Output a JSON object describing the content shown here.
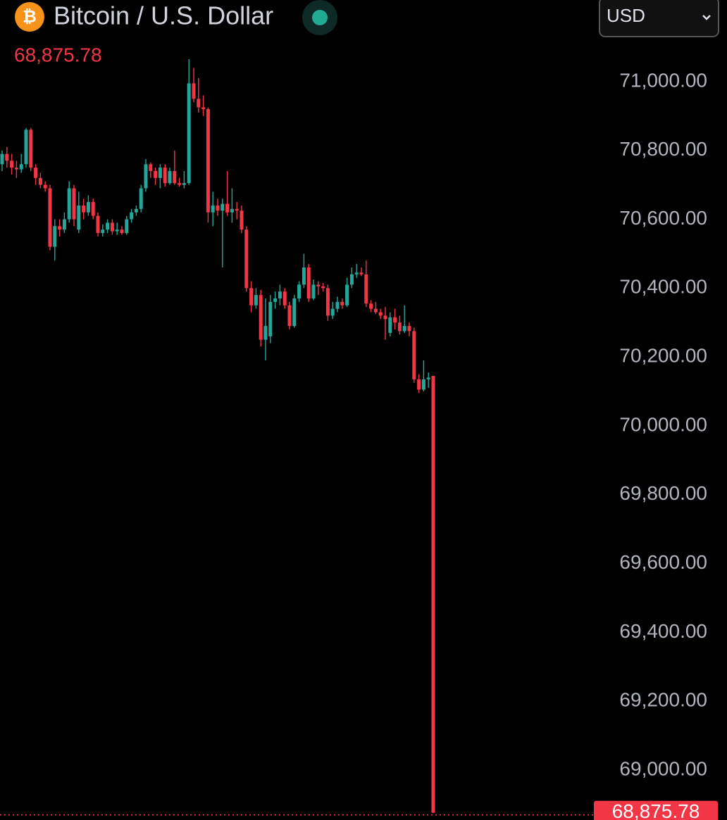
{
  "chart_data": {
    "type": "candlestick",
    "icon_symbol": "₿",
    "title": "Bitcoin / U.S. Dollar",
    "currency": "USD",
    "last_price": {
      "value": 68875.78,
      "label": "68,875.78"
    },
    "up_color": "#26a69a",
    "down_color": "#f23645",
    "ylim": [
      68865,
      71237
    ],
    "yticks": [
      {
        "value": 71000,
        "label": "71,000.00"
      },
      {
        "value": 70800,
        "label": "70,800.00"
      },
      {
        "value": 70600,
        "label": "70,600.00"
      },
      {
        "value": 70400,
        "label": "70,400.00"
      },
      {
        "value": 70200,
        "label": "70,200.00"
      },
      {
        "value": 70000,
        "label": "70,000.00"
      },
      {
        "value": 69800,
        "label": "69,800.00"
      },
      {
        "value": 69600,
        "label": "69,600.00"
      },
      {
        "value": 69400,
        "label": "69,400.00"
      },
      {
        "value": 69200,
        "label": "69,200.00"
      },
      {
        "value": 69000,
        "label": "69,000.00"
      }
    ],
    "open": [
      70760,
      70790,
      70770,
      70750,
      70745,
      70760,
      70860,
      70750,
      70720,
      70700,
      70690,
      70520,
      70580,
      70570,
      70600,
      70690,
      70570,
      70640,
      70620,
      70650,
      70610,
      70560,
      70570,
      70590,
      70565,
      70570,
      70560,
      70600,
      70620,
      70630,
      70690,
      70760,
      70740,
      70720,
      70750,
      70705,
      70740,
      70705,
      70700,
      70705,
      70995,
      70950,
      70925,
      70920,
      70620,
      70640,
      70625,
      70645,
      70620,
      70630,
      70625,
      70570,
      70400,
      70350,
      70380,
      70250,
      70260,
      70360,
      70370,
      70390,
      70350,
      70290,
      70370,
      70410,
      70460,
      70370,
      70410,
      70405,
      70400,
      70320,
      70340,
      70360,
      70350,
      70410,
      70440,
      70445,
      70440,
      70355,
      70340,
      70330,
      70320,
      70270,
      70315,
      70300,
      70275,
      70290,
      70275,
      70135,
      70105,
      70135,
      70145
    ],
    "high": [
      70800,
      70810,
      70790,
      70770,
      70790,
      70865,
      70865,
      70760,
      70735,
      70710,
      70700,
      70600,
      70600,
      70620,
      70710,
      70700,
      70680,
      70660,
      70670,
      70660,
      70620,
      70585,
      70600,
      70600,
      70590,
      70580,
      70610,
      70630,
      70640,
      70700,
      70775,
      70765,
      70750,
      70760,
      70760,
      70750,
      70800,
      70720,
      70740,
      71065,
      71040,
      71010,
      70960,
      70925,
      70680,
      70660,
      70660,
      70740,
      70690,
      70650,
      70640,
      70580,
      70420,
      70400,
      70395,
      70370,
      70380,
      70390,
      70410,
      70400,
      70360,
      70380,
      70420,
      70500,
      70470,
      70425,
      70420,
      70415,
      70410,
      70360,
      70375,
      70370,
      70430,
      70460,
      70470,
      70460,
      70480,
      70365,
      70360,
      70340,
      70345,
      70330,
      70340,
      70320,
      70350,
      70300,
      70285,
      70150,
      70190,
      70155,
      70145
    ],
    "low": [
      70740,
      70750,
      70730,
      70720,
      70735,
      70750,
      70740,
      70700,
      70690,
      70680,
      70510,
      70480,
      70550,
      70560,
      70590,
      70580,
      70560,
      70600,
      70610,
      70600,
      70550,
      70550,
      70560,
      70555,
      70555,
      70555,
      70555,
      70590,
      70610,
      70620,
      70680,
      70720,
      70700,
      70690,
      70695,
      70700,
      70700,
      70695,
      70690,
      70700,
      70940,
      70910,
      70900,
      70590,
      70580,
      70610,
      70460,
      70610,
      70590,
      70600,
      70560,
      70390,
      70330,
      70340,
      70230,
      70190,
      70240,
      70340,
      70350,
      70340,
      70280,
      70285,
      70360,
      70400,
      70360,
      70365,
      70380,
      70390,
      70305,
      70310,
      70330,
      70340,
      70345,
      70400,
      70430,
      70435,
      70345,
      70330,
      70325,
      70310,
      70250,
      70260,
      70280,
      70265,
      70270,
      70260,
      70125,
      70095,
      70100,
      70110,
      68875.78
    ],
    "close": [
      70790,
      70770,
      70750,
      70745,
      70760,
      70860,
      70750,
      70720,
      70700,
      70690,
      70520,
      70580,
      70570,
      70600,
      70690,
      70600,
      70640,
      70620,
      70650,
      70610,
      70560,
      70570,
      70590,
      70565,
      70570,
      70560,
      70600,
      70620,
      70630,
      70690,
      70760,
      70740,
      70720,
      70750,
      70705,
      70740,
      70705,
      70700,
      70705,
      70995,
      70950,
      70925,
      70920,
      70620,
      70640,
      70625,
      70645,
      70620,
      70630,
      70625,
      70570,
      70400,
      70350,
      70380,
      70250,
      70290,
      70360,
      70370,
      70390,
      70350,
      70290,
      70370,
      70410,
      70460,
      70370,
      70410,
      70405,
      70400,
      70320,
      70340,
      70360,
      70350,
      70410,
      70440,
      70445,
      70440,
      70355,
      70340,
      70330,
      70320,
      70310,
      70315,
      70300,
      70275,
      70290,
      70275,
      70135,
      70105,
      70135,
      70140,
      68875.78
    ]
  }
}
